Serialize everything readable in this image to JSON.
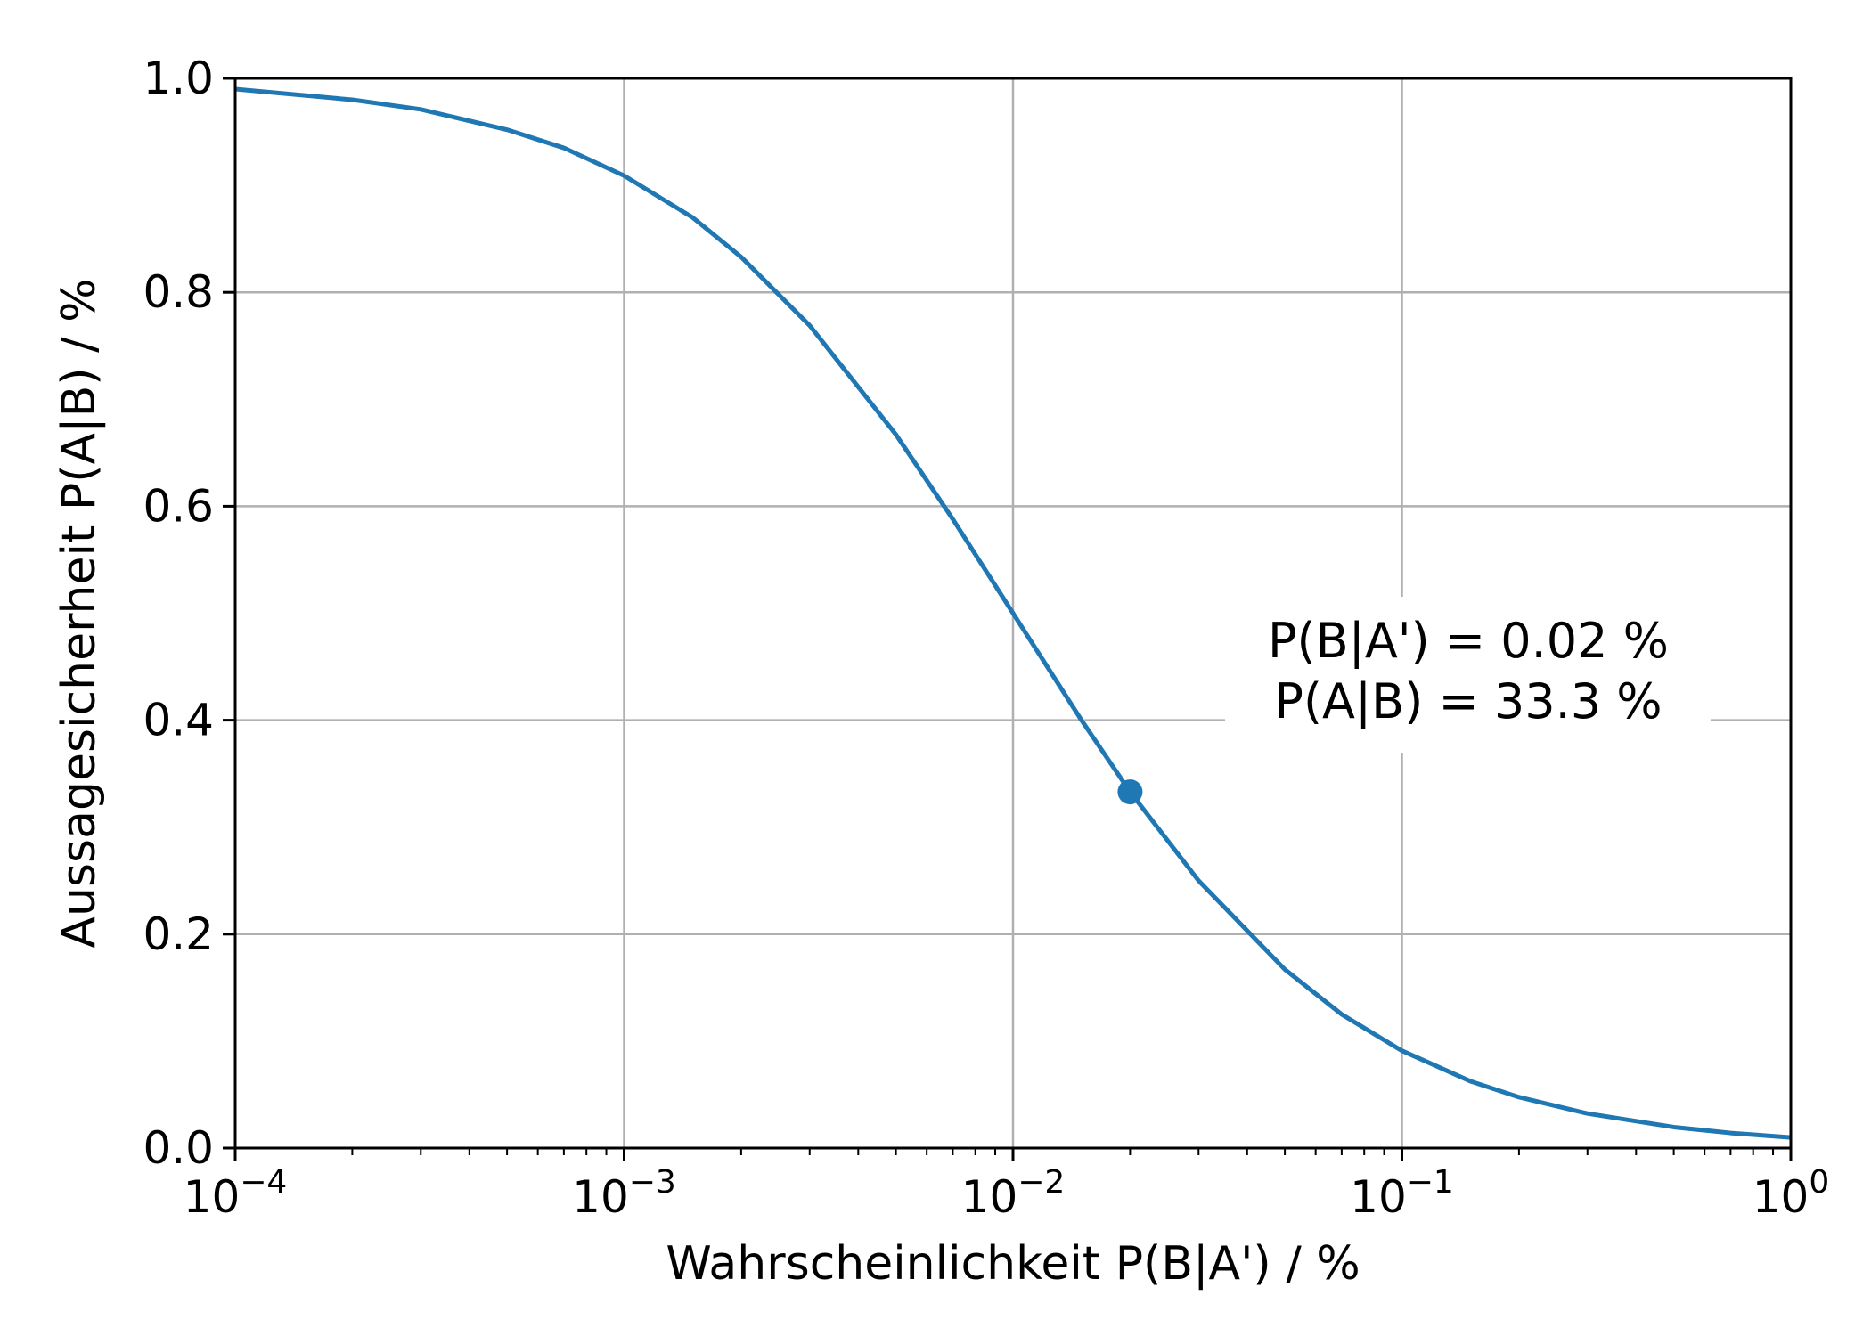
{
  "chart_data": {
    "type": "line",
    "x_scale": "log",
    "xlim": [
      0.0001,
      1
    ],
    "ylim": [
      0.0,
      1.0
    ],
    "grid": true,
    "xlabel": "Wahrscheinlichkeit P(B|A') / %",
    "ylabel": "Aussagesicherheit P(A|B) / %",
    "x_ticks": [
      {
        "value": 0.0001,
        "base": "10",
        "exp": "−4"
      },
      {
        "value": 0.001,
        "base": "10",
        "exp": "−3"
      },
      {
        "value": 0.01,
        "base": "10",
        "exp": "−2"
      },
      {
        "value": 0.1,
        "base": "10",
        "exp": "−1"
      },
      {
        "value": 1,
        "base": "10",
        "exp": "0"
      }
    ],
    "y_ticks": [
      {
        "value": 0.0,
        "label": "0.0"
      },
      {
        "value": 0.2,
        "label": "0.2"
      },
      {
        "value": 0.4,
        "label": "0.4"
      },
      {
        "value": 0.6,
        "label": "0.6"
      },
      {
        "value": 0.8,
        "label": "0.8"
      },
      {
        "value": 1.0,
        "label": "1.0"
      }
    ],
    "series": [
      {
        "color": "#1f77b4",
        "x": [
          0.0001,
          0.0002,
          0.0003,
          0.0005,
          0.0007,
          0.001,
          0.0015,
          0.002,
          0.003,
          0.005,
          0.007,
          0.01,
          0.015,
          0.02,
          0.03,
          0.05,
          0.07,
          0.1,
          0.15,
          0.2,
          0.3,
          0.5,
          0.7,
          1.0
        ],
        "y": [
          0.99,
          0.98,
          0.971,
          0.952,
          0.935,
          0.909,
          0.87,
          0.833,
          0.769,
          0.667,
          0.588,
          0.5,
          0.4,
          0.333,
          0.25,
          0.167,
          0.125,
          0.091,
          0.0625,
          0.0476,
          0.0323,
          0.0196,
          0.0141,
          0.0099
        ]
      }
    ],
    "highlight_point": {
      "x": 0.02,
      "y": 0.333,
      "color": "#1f77b4"
    },
    "annotation": {
      "line1": "P(B|A') = 0.02 %",
      "line2": "P(A|B) = 33.3 %"
    }
  }
}
